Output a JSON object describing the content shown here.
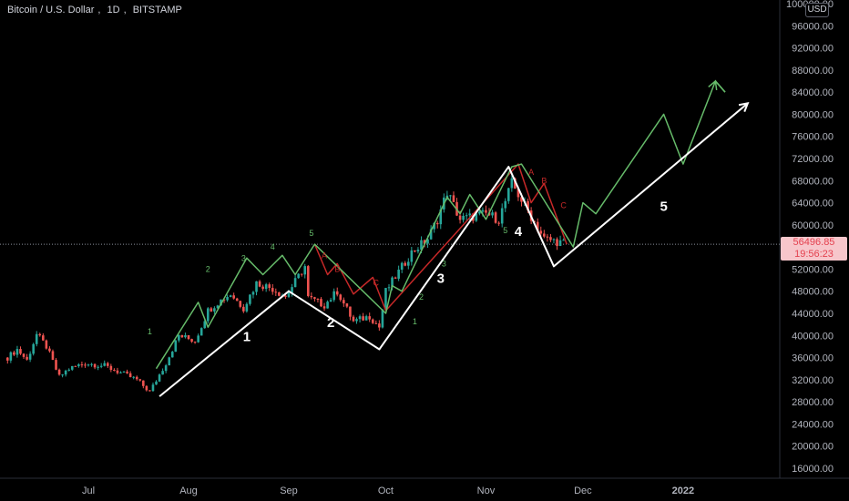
{
  "header": {
    "symbol": "Bitcoin / U.S. Dollar",
    "interval": "1D",
    "exchange": "BITSTAMP",
    "currency": "USD"
  },
  "price_tag": {
    "price": "56496.85",
    "countdown": "19:56:23"
  },
  "colors": {
    "up": "#26a69a",
    "down": "#ef5350",
    "green_path": "#66bb6a",
    "red_path": "#c62828",
    "white_path": "#ffffff",
    "grid": "#1b1b1b",
    "axis_text": "#b2b5be"
  },
  "chart_data": {
    "type": "candlestick",
    "y_axis": {
      "ylim": [
        16000,
        100000
      ],
      "ticks": [
        "16000.00",
        "20000.00",
        "24000.00",
        "28000.00",
        "32000.00",
        "36000.00",
        "40000.00",
        "44000.00",
        "48000.00",
        "52000.00",
        "56000.00",
        "60000.00",
        "64000.00",
        "68000.00",
        "72000.00",
        "76000.00",
        "80000.00",
        "84000.00",
        "88000.00",
        "92000.00",
        "96000.00",
        "100000.00"
      ]
    },
    "x_axis": {
      "ticks": [
        {
          "label": "Jul",
          "date": "2021-07-01"
        },
        {
          "label": "Aug",
          "date": "2021-08-01"
        },
        {
          "label": "Sep",
          "date": "2021-09-01"
        },
        {
          "label": "Oct",
          "date": "2021-10-01"
        },
        {
          "label": "Nov",
          "date": "2021-11-01"
        },
        {
          "label": "Dec",
          "date": "2021-12-01"
        },
        {
          "label": "2022",
          "date": "2022-01-01"
        }
      ]
    },
    "last_price": 56496.85,
    "price_anchors": [
      {
        "date": "2021-06-06",
        "close": 36000
      },
      {
        "date": "2021-06-09",
        "close": 37500
      },
      {
        "date": "2021-06-12",
        "close": 35500
      },
      {
        "date": "2021-06-15",
        "close": 40200
      },
      {
        "date": "2021-06-18",
        "close": 38000
      },
      {
        "date": "2021-06-22",
        "close": 32500
      },
      {
        "date": "2021-06-25",
        "close": 34000
      },
      {
        "date": "2021-06-30",
        "close": 35000
      },
      {
        "date": "2021-07-06",
        "close": 34500
      },
      {
        "date": "2021-07-12",
        "close": 33000
      },
      {
        "date": "2021-07-16",
        "close": 32000
      },
      {
        "date": "2021-07-20",
        "close": 29800
      },
      {
        "date": "2021-07-25",
        "close": 35000
      },
      {
        "date": "2021-07-29",
        "close": 40000
      },
      {
        "date": "2021-08-03",
        "close": 39000
      },
      {
        "date": "2021-08-07",
        "close": 44500
      },
      {
        "date": "2021-08-10",
        "close": 46000
      },
      {
        "date": "2021-08-14",
        "close": 47500
      },
      {
        "date": "2021-08-18",
        "close": 45000
      },
      {
        "date": "2021-08-22",
        "close": 49500
      },
      {
        "date": "2021-08-27",
        "close": 48500
      },
      {
        "date": "2021-08-31",
        "close": 47000
      },
      {
        "date": "2021-09-06",
        "close": 52500
      },
      {
        "date": "2021-09-07",
        "close": 46800
      },
      {
        "date": "2021-09-12",
        "close": 45500
      },
      {
        "date": "2021-09-16",
        "close": 48000
      },
      {
        "date": "2021-09-21",
        "close": 42500
      },
      {
        "date": "2021-09-26",
        "close": 43500
      },
      {
        "date": "2021-09-29",
        "close": 41500
      },
      {
        "date": "2021-10-01",
        "close": 48000
      },
      {
        "date": "2021-10-05",
        "close": 51500
      },
      {
        "date": "2021-10-09",
        "close": 55000
      },
      {
        "date": "2021-10-14",
        "close": 57500
      },
      {
        "date": "2021-10-17",
        "close": 61000
      },
      {
        "date": "2021-10-20",
        "close": 66000
      },
      {
        "date": "2021-10-24",
        "close": 61000
      },
      {
        "date": "2021-10-28",
        "close": 61500
      },
      {
        "date": "2021-11-01",
        "close": 62000
      },
      {
        "date": "2021-11-05",
        "close": 61000
      },
      {
        "date": "2021-11-09",
        "close": 67500
      },
      {
        "date": "2021-11-12",
        "close": 64500
      },
      {
        "date": "2021-11-16",
        "close": 60500
      },
      {
        "date": "2021-11-19",
        "close": 57500
      },
      {
        "date": "2021-11-23",
        "close": 57000
      },
      {
        "date": "2021-11-26",
        "close": 56500
      }
    ],
    "green_wave_path": [
      {
        "date": "2021-07-22",
        "price": 34000
      },
      {
        "date": "2021-08-04",
        "price": 46000
      },
      {
        "date": "2021-08-07",
        "price": 41500
      },
      {
        "date": "2021-08-19",
        "price": 54000
      },
      {
        "date": "2021-08-24",
        "price": 51000
      },
      {
        "date": "2021-08-30",
        "price": 54500
      },
      {
        "date": "2021-09-03",
        "price": 51000
      },
      {
        "date": "2021-09-09",
        "price": 56500
      },
      {
        "date": "2021-10-01",
        "price": 44000
      },
      {
        "date": "2021-10-03",
        "price": 49000
      },
      {
        "date": "2021-10-06",
        "price": 48000
      },
      {
        "date": "2021-10-20",
        "price": 65000
      },
      {
        "date": "2021-10-24",
        "price": 62000
      },
      {
        "date": "2021-10-27",
        "price": 65500
      },
      {
        "date": "2021-11-01",
        "price": 61000
      },
      {
        "date": "2021-11-09",
        "price": 70500
      },
      {
        "date": "2021-11-12",
        "price": 71000
      },
      {
        "date": "2021-11-28",
        "price": 56000
      },
      {
        "date": "2021-12-01",
        "price": 64000
      },
      {
        "date": "2021-12-05",
        "price": 62000
      },
      {
        "date": "2021-12-26",
        "price": 80000
      },
      {
        "date": "2022-01-01",
        "price": 71000
      },
      {
        "date": "2022-01-11",
        "price": 86000
      },
      {
        "date": "2022-01-14",
        "price": 84000
      }
    ],
    "red_wave_path": [
      {
        "date": "2021-09-09",
        "price": 56500
      },
      {
        "date": "2021-09-13",
        "price": 51000
      },
      {
        "date": "2021-09-16",
        "price": 53000
      },
      {
        "date": "2021-09-21",
        "price": 47500
      },
      {
        "date": "2021-09-27",
        "price": 50500
      },
      {
        "date": "2021-10-01",
        "price": 44500
      },
      {
        "date": "2021-11-11",
        "price": 71000
      },
      {
        "date": "2021-11-15",
        "price": 64000
      },
      {
        "date": "2021-11-19",
        "price": 67500
      },
      {
        "date": "2021-11-26",
        "price": 56500
      }
    ],
    "white_wave_path": [
      {
        "date": "2021-07-23",
        "price": 29000
      },
      {
        "date": "2021-09-01",
        "price": 48000
      },
      {
        "date": "2021-09-29",
        "price": 37500
      },
      {
        "date": "2021-11-08",
        "price": 70500
      },
      {
        "date": "2021-11-22",
        "price": 52500
      },
      {
        "date": "2022-01-21",
        "price": 82000
      }
    ],
    "annotations": [
      {
        "text": "1",
        "date": "2021-07-20",
        "price": 40200,
        "color": "#66bb6a",
        "size": "small"
      },
      {
        "text": "2",
        "date": "2021-08-07",
        "price": 51500,
        "color": "#66bb6a",
        "size": "small"
      },
      {
        "text": "3",
        "date": "2021-08-18",
        "price": 53500,
        "color": "#66bb6a",
        "size": "small"
      },
      {
        "text": "4",
        "date": "2021-08-27",
        "price": 55500,
        "color": "#66bb6a",
        "size": "small"
      },
      {
        "text": "5",
        "date": "2021-09-08",
        "price": 58000,
        "color": "#66bb6a",
        "size": "small"
      },
      {
        "text": "A",
        "date": "2021-09-12",
        "price": 54000,
        "color": "#c62828",
        "size": "small"
      },
      {
        "text": "B",
        "date": "2021-09-16",
        "price": 51500,
        "color": "#c62828",
        "size": "small"
      },
      {
        "text": "C",
        "date": "2021-09-28",
        "price": 49000,
        "color": "#c62828",
        "size": "small"
      },
      {
        "text": "1",
        "date": "2021-10-10",
        "price": 42000,
        "color": "#66bb6a",
        "size": "small"
      },
      {
        "text": "2",
        "date": "2021-10-12",
        "price": 46500,
        "color": "#66bb6a",
        "size": "small"
      },
      {
        "text": "3",
        "date": "2021-10-19",
        "price": 52500,
        "color": "#66bb6a",
        "size": "small"
      },
      {
        "text": "5",
        "date": "2021-11-07",
        "price": 58500,
        "color": "#66bb6a",
        "size": "small"
      },
      {
        "text": "A",
        "date": "2021-11-15",
        "price": 69000,
        "color": "#c62828",
        "size": "small"
      },
      {
        "text": "B",
        "date": "2021-11-19",
        "price": 67500,
        "color": "#c62828",
        "size": "small"
      },
      {
        "text": "C",
        "date": "2021-11-25",
        "price": 63000,
        "color": "#c62828",
        "size": "small"
      },
      {
        "text": "1",
        "date": "2021-08-19",
        "price": 39000,
        "color": "#ffffff",
        "size": "large"
      },
      {
        "text": "2",
        "date": "2021-09-14",
        "price": 41500,
        "color": "#ffffff",
        "size": "large"
      },
      {
        "text": "3",
        "date": "2021-10-18",
        "price": 49500,
        "color": "#ffffff",
        "size": "large"
      },
      {
        "text": "4",
        "date": "2021-11-11",
        "price": 58000,
        "color": "#ffffff",
        "size": "large"
      },
      {
        "text": "5",
        "date": "2021-12-26",
        "price": 62500,
        "color": "#ffffff",
        "size": "large"
      }
    ]
  }
}
